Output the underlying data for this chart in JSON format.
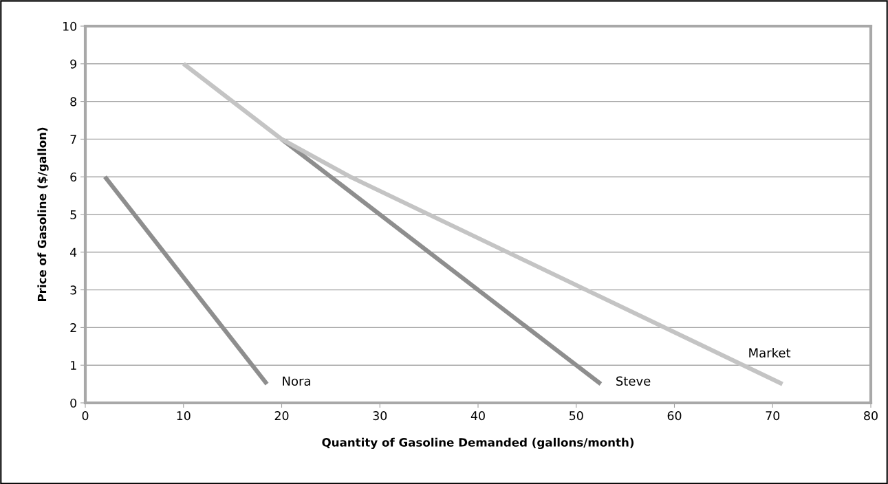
{
  "chart_data": {
    "type": "line",
    "xlabel": "Quantity of Gasoline Demanded (gallons/month)",
    "ylabel": "Price of Gasoline ($/gallon)",
    "xlim": [
      0,
      80
    ],
    "xticks": [
      0,
      10,
      20,
      30,
      40,
      50,
      60,
      70,
      80
    ],
    "ylim": [
      0,
      10
    ],
    "yticks": [
      0,
      1,
      2,
      3,
      4,
      5,
      6,
      7,
      8,
      9,
      10
    ],
    "grid": "y",
    "legend": false,
    "marker": "none",
    "line_style": "solid",
    "series": [
      {
        "name": "Nora",
        "color": "#8e8e8e",
        "x": [
          2,
          18.5
        ],
        "values": [
          6,
          0.5
        ]
      },
      {
        "name": "Steve",
        "color": "#8e8e8e",
        "x": [
          20,
          52.5
        ],
        "values": [
          7,
          0.5
        ]
      },
      {
        "name": "Market",
        "color": "#c4c4c4",
        "x": [
          10,
          20,
          27,
          71
        ],
        "values": [
          9,
          7,
          6,
          0.5
        ]
      }
    ]
  }
}
